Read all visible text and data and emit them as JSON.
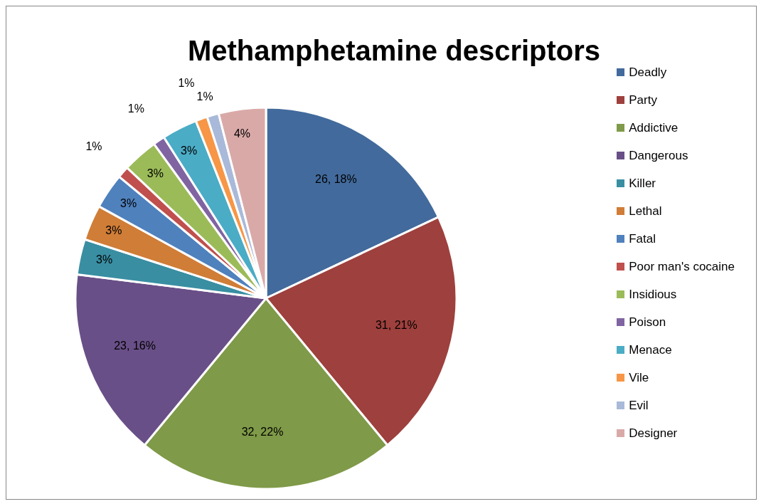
{
  "chart_data": {
    "type": "pie",
    "title": "Methamphetamine descriptors",
    "categories": [
      "Deadly",
      "Party",
      "Addictive",
      "Dangerous",
      "Killer",
      "Lethal",
      "Fatal",
      "Poor man's cocaine",
      "Insidious",
      "Poison",
      "Menace",
      "Vile",
      "Evil",
      "Designer"
    ],
    "values": [
      18,
      21,
      22,
      16,
      3,
      3,
      3,
      1,
      3,
      1,
      3,
      1,
      1,
      4
    ],
    "value_labels": [
      "26, 18%",
      "31, 21%",
      "32, 22%",
      "23, 16%",
      "3%",
      "3%",
      "3%",
      "1%",
      "3%",
      "1%",
      "3%",
      "1%",
      "1%",
      "4%"
    ],
    "colors": [
      "#426a9c",
      "#9e403d",
      "#7f9a48",
      "#694f87",
      "#398ea2",
      "#d07d37",
      "#4f81bd",
      "#c0504d",
      "#9bbb59",
      "#8064a2",
      "#4bacc6",
      "#f79646",
      "#a9b9d9",
      "#d9a9a8"
    ],
    "legend": "right"
  }
}
